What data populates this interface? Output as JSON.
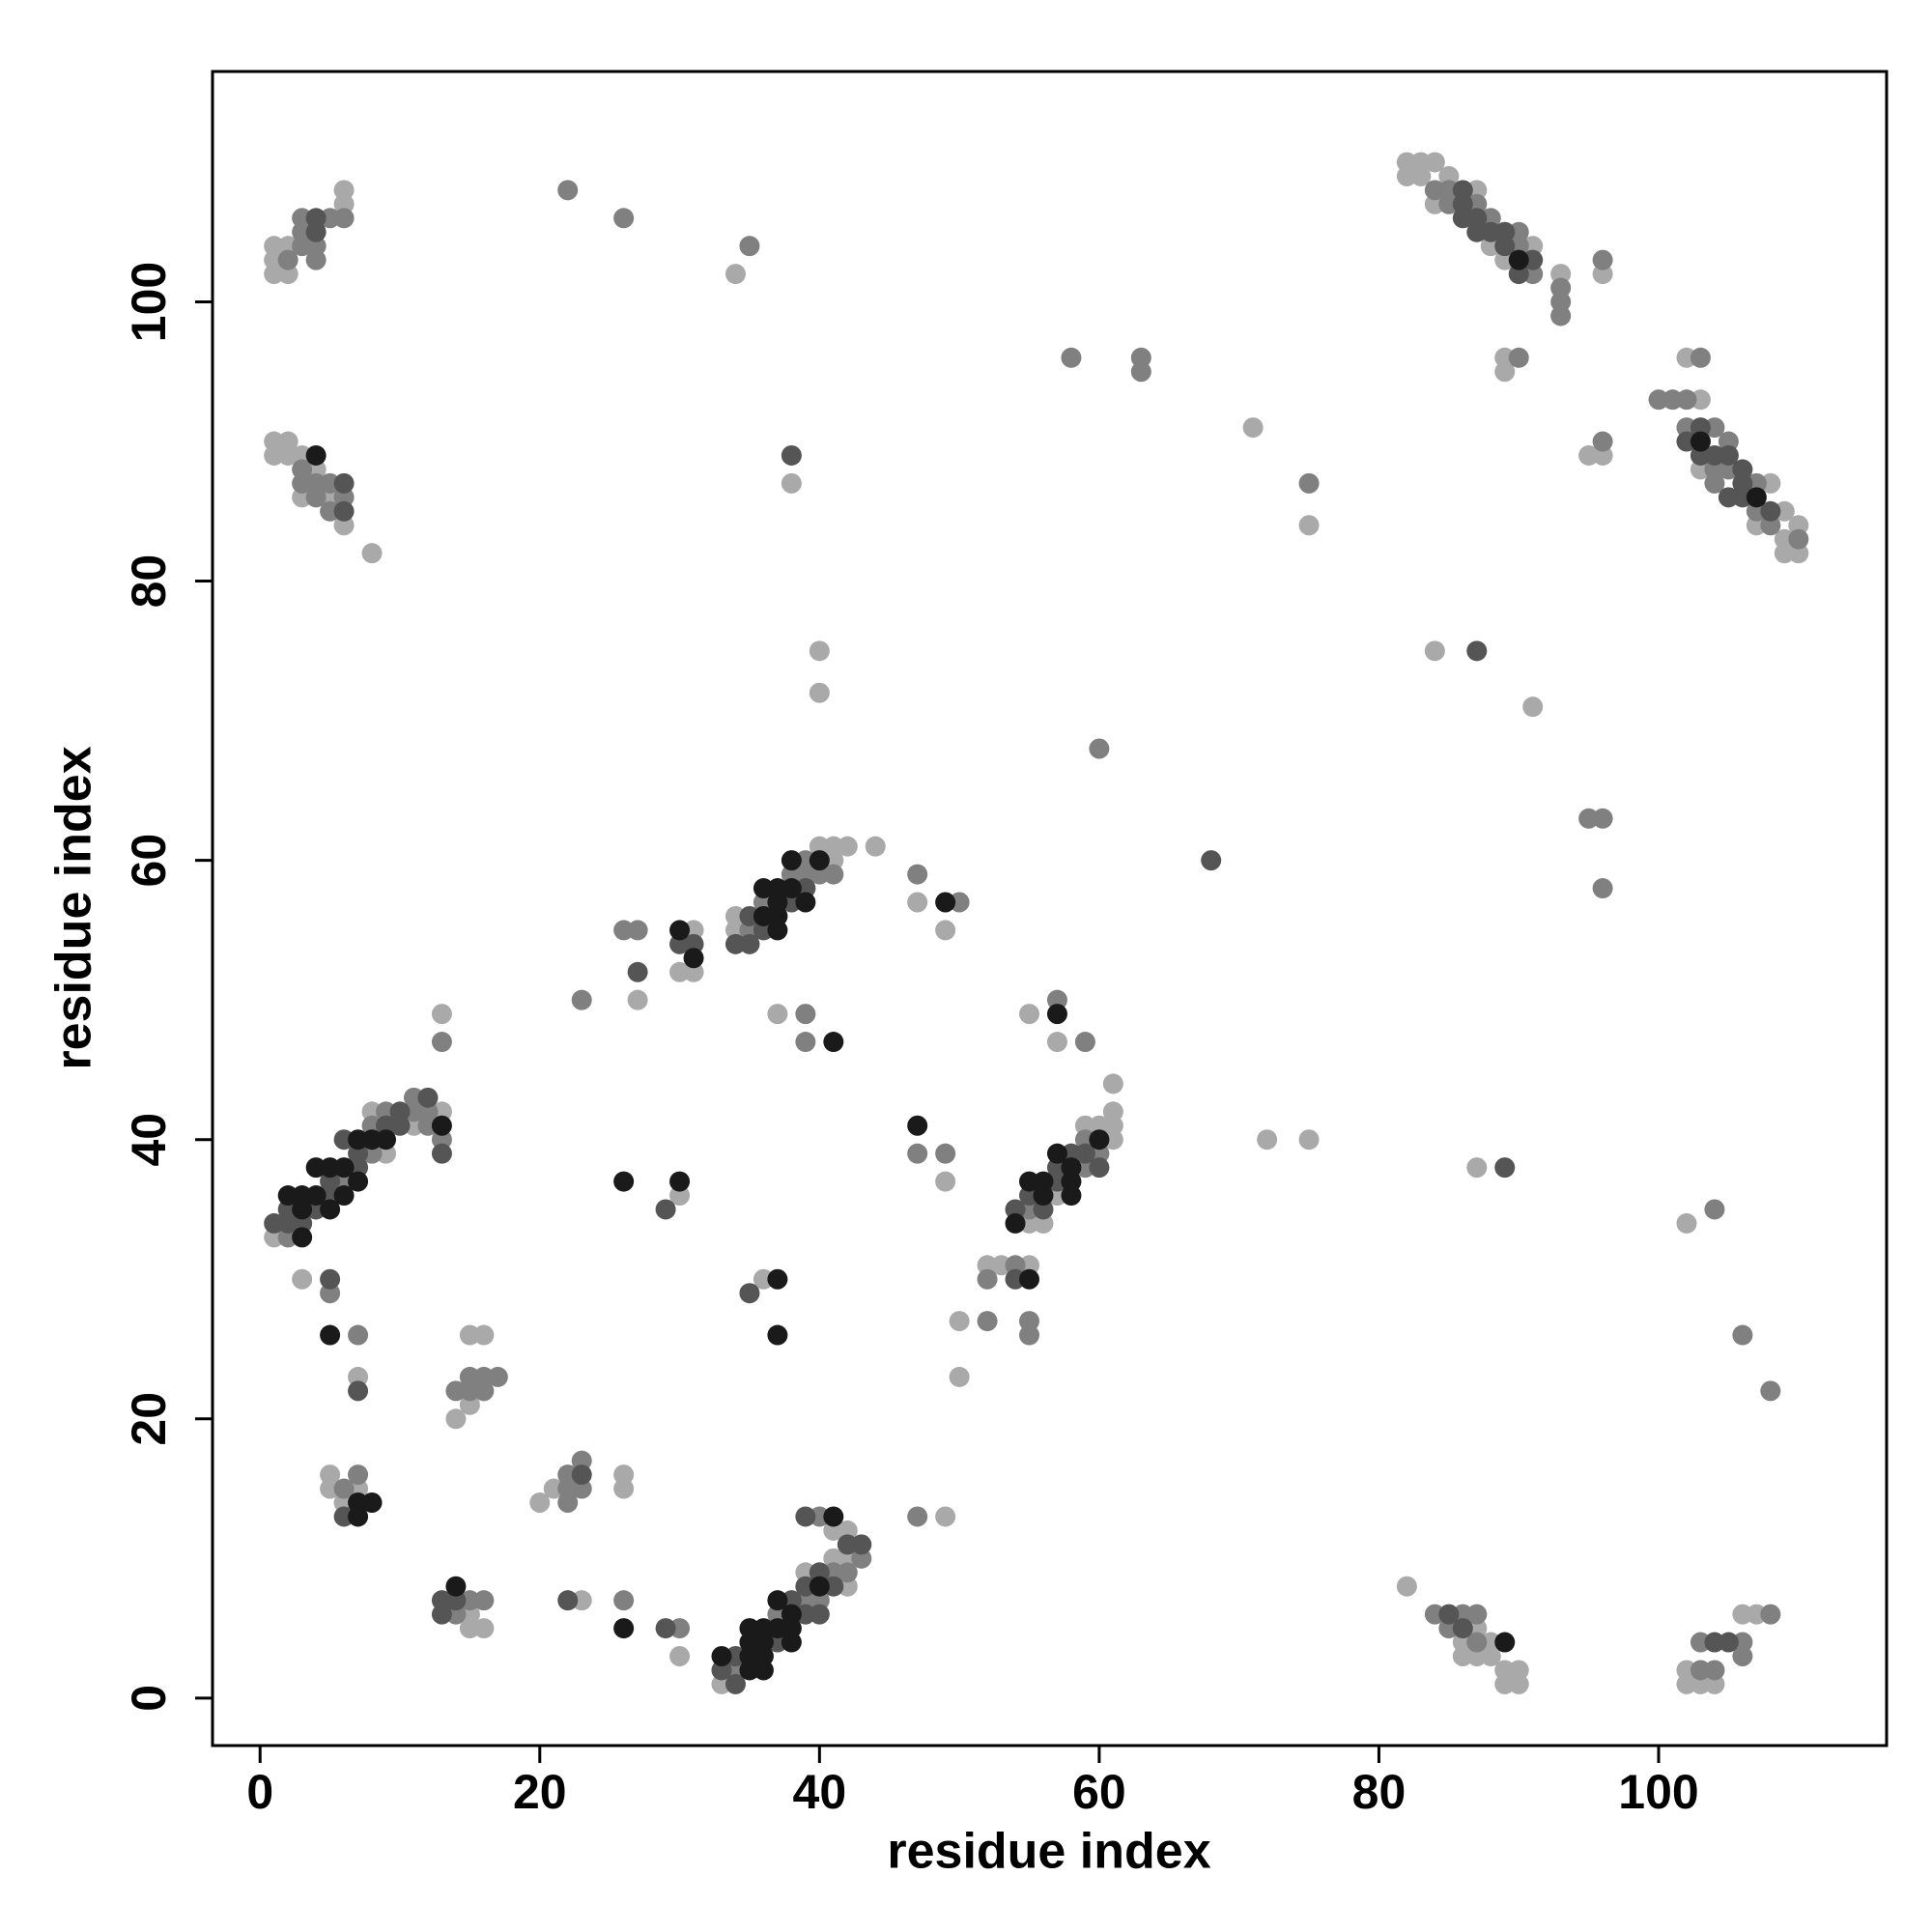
{
  "chart_data": {
    "type": "scatter",
    "xlabel": "residue index",
    "ylabel": "residue index",
    "xlim": [
      -3.4,
      116.3
    ],
    "ylim": [
      -3.4,
      116.5
    ],
    "xticks": [
      0,
      20,
      40,
      60,
      80,
      100
    ],
    "yticks": [
      0,
      20,
      40,
      60,
      80,
      100
    ],
    "grid": false,
    "series": [
      {
        "color": "#a9a9a9",
        "x": [
          1,
          1,
          1,
          2,
          2,
          6,
          6,
          1,
          1,
          2,
          2,
          3,
          3,
          4,
          5,
          6,
          8,
          34,
          71,
          75,
          38,
          40,
          40,
          82,
          82,
          83,
          83,
          84,
          84,
          85,
          87,
          88,
          89,
          91,
          93,
          96,
          89,
          89,
          102,
          103,
          103,
          107,
          108,
          109,
          109,
          109,
          110,
          110,
          95,
          96,
          84,
          91,
          72,
          75,
          87,
          102,
          82,
          86,
          86,
          87,
          87,
          88,
          88,
          89,
          89,
          90,
          90,
          102,
          102,
          103,
          104,
          106,
          107,
          1,
          8,
          9,
          11,
          13,
          3,
          7,
          13,
          14,
          15,
          15,
          16,
          5,
          5,
          6,
          7,
          15,
          15,
          16,
          20,
          21,
          23,
          26,
          26,
          30,
          27,
          30,
          30,
          31,
          31,
          34,
          34,
          40,
          41,
          41,
          42,
          44,
          47,
          49,
          37,
          36,
          33,
          39,
          41,
          42,
          42,
          42,
          41,
          49,
          49,
          50,
          50,
          52,
          53,
          55,
          55,
          56,
          57,
          59,
          60,
          61,
          61,
          61,
          61,
          55,
          57
        ],
        "values": [
          104,
          103,
          102,
          104,
          102,
          108,
          107,
          90,
          89,
          90,
          89,
          89,
          86,
          88,
          86,
          84,
          82,
          102,
          91,
          84,
          87,
          75,
          72,
          110,
          109,
          110,
          109,
          110,
          107,
          109,
          108,
          104,
          103,
          104,
          102,
          102,
          96,
          95,
          96,
          93,
          88,
          84,
          87,
          85,
          83,
          82,
          84,
          82,
          89,
          89,
          75,
          71,
          40,
          40,
          38,
          34,
          8,
          4,
          3,
          5,
          3,
          4,
          3,
          2,
          1,
          2,
          1,
          2,
          1,
          1,
          1,
          6,
          6,
          33,
          42,
          39,
          41,
          42,
          30,
          23,
          49,
          20,
          26,
          21,
          26,
          16,
          15,
          14,
          15,
          6,
          5,
          5,
          14,
          15,
          7,
          16,
          15,
          3,
          50,
          36,
          52,
          55,
          52,
          56,
          55,
          61,
          61,
          60,
          61,
          61,
          57,
          55,
          49,
          30,
          1,
          9,
          10,
          12,
          10,
          8,
          12,
          13,
          37,
          27,
          23,
          31,
          31,
          31,
          34,
          34,
          36,
          41,
          41,
          44,
          42,
          41,
          40,
          49,
          47
        ]
      },
      {
        "color": "#808080",
        "x": [
          2,
          3,
          3,
          3,
          4,
          4,
          5,
          6,
          3,
          3,
          4,
          4,
          5,
          5,
          6,
          22,
          26,
          35,
          58,
          63,
          63,
          75,
          60,
          84,
          85,
          85,
          87,
          88,
          90,
          90,
          91,
          93,
          93,
          93,
          96,
          90,
          103,
          100,
          101,
          102,
          102,
          104,
          104,
          104,
          105,
          105,
          107,
          107,
          108,
          110,
          96,
          95,
          96,
          96,
          104,
          106,
          108,
          84,
          85,
          86,
          87,
          87,
          103,
          103,
          104,
          106,
          106,
          108,
          2,
          6,
          8,
          8,
          9,
          11,
          11,
          12,
          12,
          13,
          5,
          7,
          13,
          14,
          15,
          15,
          16,
          16,
          17,
          6,
          7,
          14,
          15,
          16,
          22,
          22,
          22,
          23,
          23,
          26,
          30,
          23,
          26,
          27,
          35,
          36,
          38,
          39,
          39,
          40,
          41,
          47,
          50,
          39,
          39,
          34,
          37,
          39,
          40,
          41,
          42,
          43,
          40,
          47,
          47,
          49,
          52,
          52,
          54,
          55,
          55,
          55,
          59,
          59,
          60,
          57,
          59
        ],
        "values": [
          103,
          106,
          105,
          104,
          104,
          103,
          106,
          106,
          88,
          87,
          87,
          86,
          87,
          85,
          86,
          108,
          106,
          104,
          96,
          96,
          95,
          87,
          68,
          108,
          108,
          107,
          107,
          106,
          105,
          104,
          102,
          101,
          100,
          99,
          103,
          96,
          96,
          93,
          93,
          93,
          91,
          91,
          88,
          87,
          90,
          88,
          87,
          85,
          84,
          83,
          90,
          63,
          63,
          58,
          35,
          26,
          22,
          6,
          5,
          6,
          6,
          4,
          4,
          2,
          2,
          4,
          3,
          6,
          33,
          37,
          41,
          39,
          42,
          43,
          42,
          42,
          41,
          40,
          29,
          26,
          47,
          22,
          23,
          22,
          23,
          22,
          23,
          15,
          16,
          6,
          7,
          7,
          16,
          15,
          14,
          17,
          15,
          7,
          5,
          50,
          55,
          55,
          55,
          57,
          59,
          60,
          59,
          59,
          59,
          59,
          57,
          49,
          47,
          2,
          6,
          7,
          7,
          9,
          9,
          10,
          13,
          13,
          39,
          39,
          30,
          27,
          31,
          27,
          26,
          35,
          40,
          38,
          39,
          50,
          47
        ]
      },
      {
        "color": "#555555",
        "x": [
          4,
          4,
          6,
          6,
          38,
          68,
          86,
          86,
          86,
          87,
          87,
          88,
          89,
          89,
          90,
          91,
          102,
          103,
          103,
          104,
          105,
          105,
          106,
          106,
          106,
          108,
          87,
          89,
          85,
          86,
          104,
          105,
          1,
          2,
          2,
          3,
          4,
          5,
          5,
          6,
          7,
          7,
          9,
          10,
          10,
          12,
          13,
          5,
          7,
          6,
          13,
          13,
          14,
          23,
          22,
          29,
          27,
          29,
          30,
          31,
          34,
          35,
          35,
          36,
          38,
          39,
          35,
          33,
          34,
          34,
          37,
          38,
          39,
          39,
          40,
          40,
          41,
          42,
          43,
          39,
          54,
          54,
          56,
          55,
          57,
          57,
          58,
          59,
          60
        ],
        "values": [
          106,
          105,
          87,
          85,
          89,
          60,
          108,
          107,
          106,
          106,
          105,
          105,
          105,
          104,
          102,
          103,
          90,
          91,
          89,
          89,
          89,
          86,
          88,
          87,
          86,
          85,
          75,
          38,
          6,
          5,
          4,
          4,
          34,
          35,
          34,
          34,
          35,
          37,
          36,
          40,
          39,
          38,
          41,
          42,
          41,
          43,
          39,
          30,
          22,
          13,
          7,
          6,
          7,
          16,
          7,
          5,
          52,
          35,
          54,
          54,
          54,
          56,
          54,
          55,
          57,
          58,
          29,
          2,
          3,
          1,
          4,
          7,
          8,
          6,
          9,
          6,
          8,
          11,
          11,
          13,
          30,
          35,
          35,
          36,
          38,
          37,
          39,
          39,
          38
        ]
      },
      {
        "color": "#1a1a1a",
        "x": [
          4,
          90,
          103,
          107,
          89,
          2,
          3,
          3,
          3,
          4,
          4,
          5,
          5,
          6,
          6,
          7,
          7,
          8,
          9,
          13,
          5,
          7,
          7,
          8,
          14,
          26,
          26,
          30,
          30,
          31,
          36,
          36,
          37,
          37,
          37,
          37,
          38,
          38,
          39,
          40,
          49,
          41,
          37,
          37,
          33,
          35,
          35,
          35,
          35,
          36,
          36,
          36,
          36,
          37,
          37,
          38,
          38,
          38,
          40,
          41,
          47,
          55,
          54,
          55,
          56,
          56,
          57,
          58,
          58,
          58,
          60,
          57
        ],
        "values": [
          89,
          103,
          90,
          86,
          4,
          36,
          36,
          35,
          33,
          38,
          36,
          38,
          35,
          38,
          36,
          40,
          37,
          40,
          40,
          41,
          26,
          14,
          13,
          14,
          8,
          5,
          37,
          37,
          55,
          53,
          56,
          58,
          58,
          57,
          56,
          55,
          60,
          58,
          57,
          60,
          57,
          47,
          30,
          26,
          3,
          5,
          4,
          3,
          2,
          5,
          4,
          3,
          2,
          7,
          5,
          6,
          5,
          4,
          8,
          13,
          41,
          30,
          34,
          37,
          37,
          36,
          39,
          38,
          37,
          36,
          40,
          49
        ]
      }
    ]
  }
}
